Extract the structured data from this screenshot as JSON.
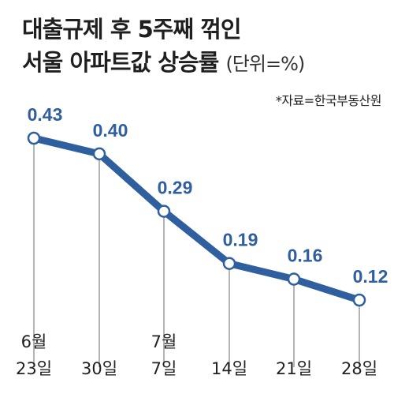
{
  "title": {
    "line1": "대출규제 후 5주째 꺾인",
    "line2": "서울 아파트값 상승률",
    "unit": "(단위=%)"
  },
  "source": "*자료=한국부동산원",
  "colors": {
    "line": "#2f5f9e",
    "marker_fill": "#ffffff",
    "gridline": "#8c8c8c",
    "label": "#2f5f9e"
  },
  "chart_data": {
    "type": "line",
    "title": "대출규제 후 5주째 꺾인 서울 아파트값 상승률",
    "unit": "(단위=%)",
    "x_labels": [
      [
        "6월",
        "23일"
      ],
      [
        "",
        "30일"
      ],
      [
        "7월",
        "7일"
      ],
      [
        "",
        "14일"
      ],
      [
        "",
        "21일"
      ],
      [
        "",
        "28일"
      ]
    ],
    "values": [
      0.43,
      0.4,
      0.29,
      0.19,
      0.16,
      0.12
    ],
    "value_labels": [
      "0.43",
      "0.40",
      "0.29",
      "0.19",
      "0.16",
      "0.12"
    ],
    "ylim": [
      0.12,
      0.43
    ],
    "grid": "vertical drop lines per point",
    "legend": "none"
  }
}
